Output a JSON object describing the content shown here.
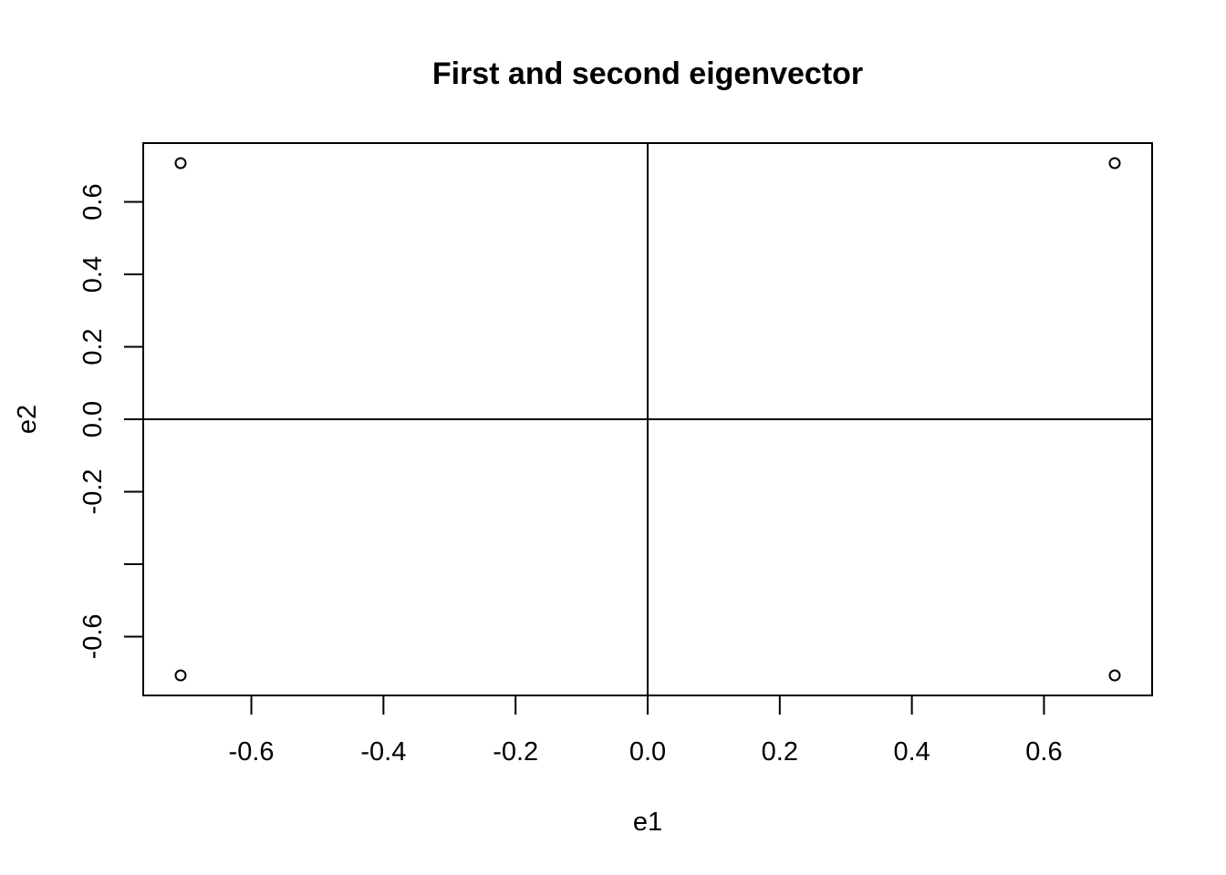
{
  "chart_data": {
    "type": "scatter",
    "title": "First and second eigenvector",
    "xlabel": "e1",
    "ylabel": "e2",
    "xlim": [
      -0.7071,
      0.7071
    ],
    "ylim": [
      -0.7071,
      0.7071
    ],
    "x": [
      -0.7071,
      0.7071,
      -0.7071,
      0.7071
    ],
    "y": [
      0.7071,
      0.7071,
      -0.7071,
      -0.7071
    ],
    "x_ticks": [
      -0.6,
      -0.4,
      -0.2,
      0.0,
      0.2,
      0.4,
      0.6
    ],
    "x_tick_labels": [
      "-0.6",
      "-0.4",
      "-0.2",
      "0.0",
      "0.2",
      "0.4",
      "0.6"
    ],
    "y_ticks": [
      -0.6,
      -0.4,
      -0.2,
      0.0,
      0.2,
      0.4,
      0.6
    ],
    "y_tick_labels": [
      "-0.6",
      "",
      "-0.2",
      "0.0",
      "0.2",
      "0.4",
      "0.6"
    ],
    "reference_lines": {
      "h": 0,
      "v": 0
    },
    "grid": false,
    "legend": "none"
  }
}
